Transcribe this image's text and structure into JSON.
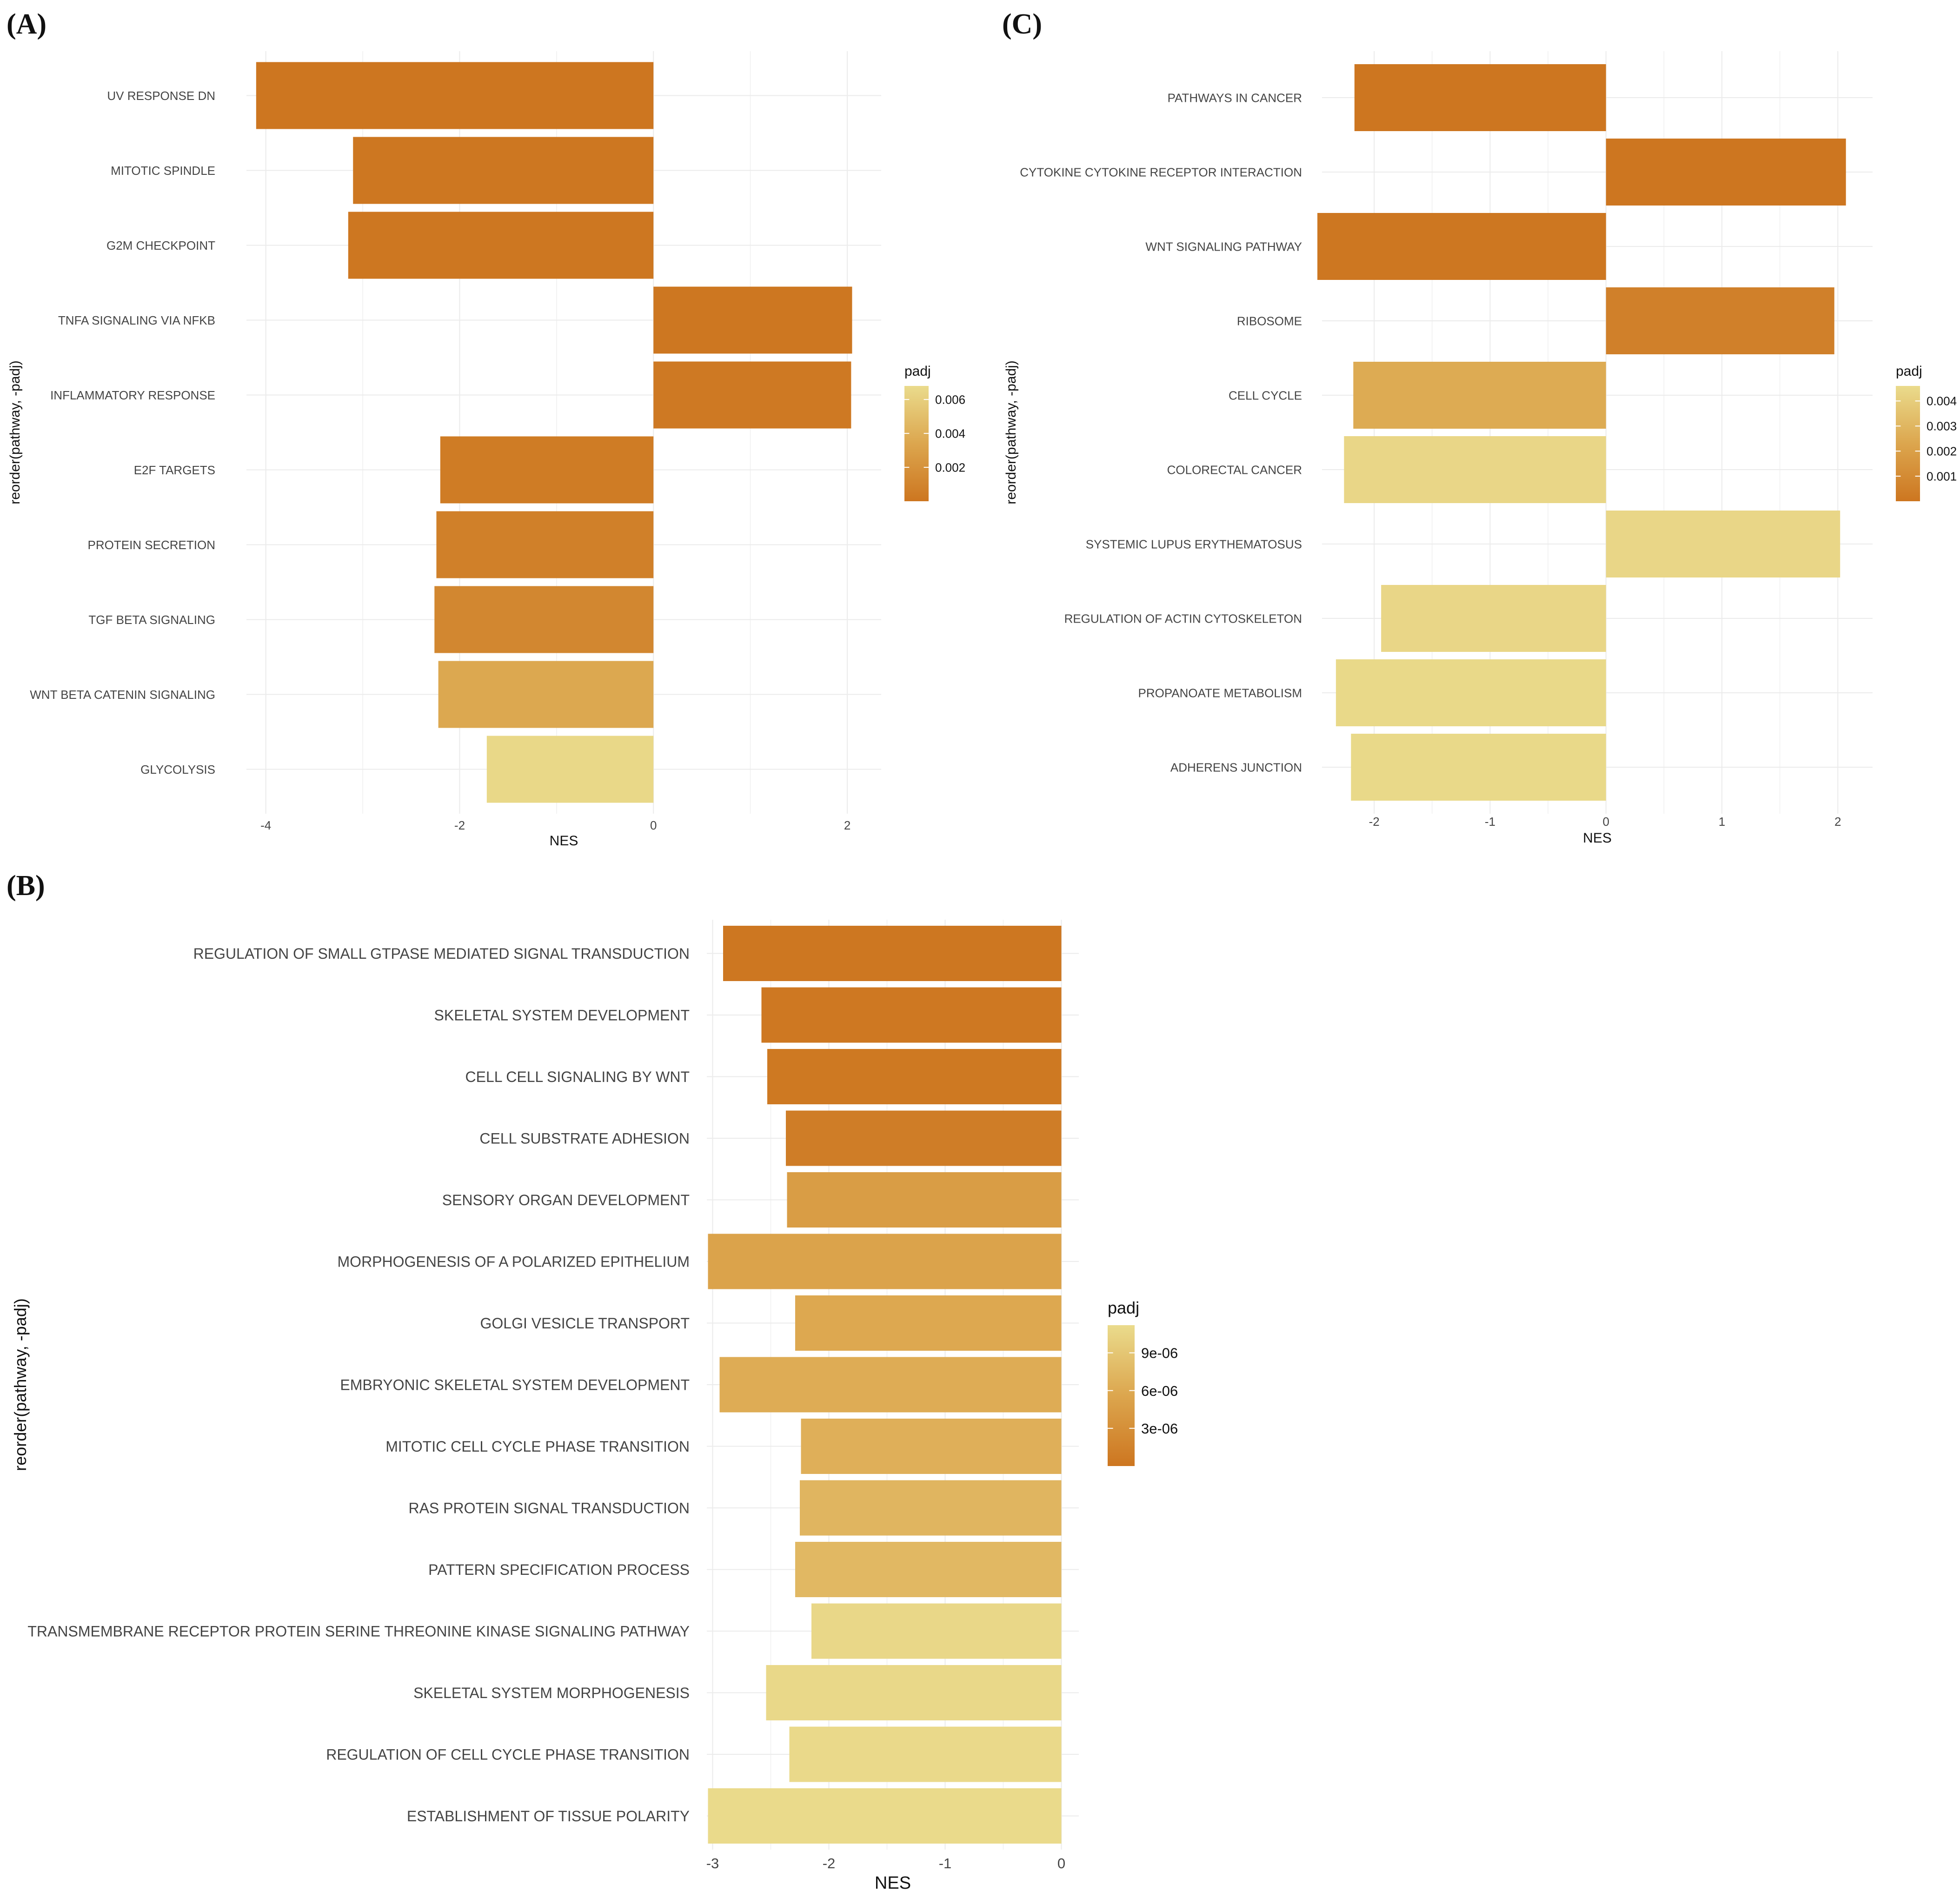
{
  "chart_data": [
    {
      "panel_label": "(A)",
      "type": "bar",
      "orientation": "horizontal",
      "xlabel": "NES",
      "ylabel": "reorder(pathway, -padj)",
      "xlim": [
        -4.2,
        2.35
      ],
      "xticks": [
        -4,
        -2,
        0,
        2
      ],
      "xtick_labels": [
        "-4",
        "-2",
        "0",
        "2"
      ],
      "grid": true,
      "legend_title": "padj",
      "legend_placement": "right",
      "legend_range": [
        0,
        0.0068
      ],
      "legend_ticks": [
        0.002,
        0.004,
        0.006
      ],
      "legend_tick_labels": [
        "0.002",
        "0.004",
        "0.006"
      ],
      "colors": {
        "low": "#cd7620",
        "mid": "#dca64e",
        "high": "#eadb8c"
      },
      "categories": [
        "UV RESPONSE DN",
        "MITOTIC SPINDLE",
        "G2M CHECKPOINT",
        "TNFA SIGNALING VIA NFKB",
        "INFLAMMATORY RESPONSE",
        "E2F TARGETS",
        "PROTEIN SECRETION",
        "TGF BETA SIGNALING",
        "WNT BETA CATENIN SIGNALING",
        "GLYCOLYSIS"
      ],
      "values": [
        -4.1,
        -3.1,
        -3.15,
        2.05,
        2.04,
        -2.2,
        -2.24,
        -2.26,
        -2.22,
        -1.72
      ],
      "padj": [
        1e-05,
        5e-05,
        8e-05,
        0.0001,
        0.0002,
        0.0004,
        0.0007,
        0.0012,
        0.0035,
        0.0066
      ]
    },
    {
      "panel_label": "(C)",
      "type": "bar",
      "orientation": "horizontal",
      "xlabel": "NES",
      "ylabel": "reorder(pathway, -padj)",
      "xlim": [
        -2.45,
        2.3
      ],
      "xticks": [
        -2,
        -1,
        0,
        1,
        2
      ],
      "xtick_labels": [
        "-2",
        "-1",
        "0",
        "1",
        "2"
      ],
      "grid": true,
      "legend_title": "padj",
      "legend_placement": "right",
      "legend_range": [
        0,
        0.0046
      ],
      "legend_ticks": [
        0.001,
        0.002,
        0.003,
        0.004
      ],
      "legend_tick_labels": [
        "0.001",
        "0.002",
        "0.003",
        "0.004"
      ],
      "colors": {
        "low": "#cd7620",
        "mid": "#dca64e",
        "high": "#eadb8c"
      },
      "categories": [
        "PATHWAYS IN CANCER",
        "CYTOKINE CYTOKINE RECEPTOR INTERACTION",
        "WNT SIGNALING PATHWAY",
        "RIBOSOME",
        "CELL CYCLE",
        "COLORECTAL CANCER",
        "SYSTEMIC LUPUS ERYTHEMATOSUS",
        "REGULATION OF ACTIN CYTOSKELETON",
        "PROPANOATE METABOLISM",
        "ADHERENS JUNCTION"
      ],
      "values": [
        -2.17,
        2.07,
        -2.49,
        1.97,
        -2.18,
        -2.26,
        2.02,
        -1.94,
        -2.33,
        -2.2
      ],
      "padj": [
        1e-05,
        2e-05,
        4e-05,
        0.0005,
        0.0025,
        0.0044,
        0.0044,
        0.0044,
        0.0045,
        0.0045
      ]
    },
    {
      "panel_label": "(B)",
      "type": "bar",
      "orientation": "horizontal",
      "xlabel": "NES",
      "ylabel": "reorder(pathway, -padj)",
      "xlim": [
        -3.05,
        0.15
      ],
      "xticks": [
        -3,
        -2,
        -1,
        0
      ],
      "xtick_labels": [
        "-3",
        "-2",
        "-1",
        "0"
      ],
      "grid": true,
      "legend_title": "padj",
      "legend_placement": "right",
      "legend_range": [
        0,
        1.12e-05
      ],
      "legend_ticks": [
        3e-06,
        6e-06,
        9e-06
      ],
      "legend_tick_labels": [
        "3e-06",
        "6e-06",
        "9e-06"
      ],
      "colors": {
        "low": "#cd7620",
        "mid": "#dca64e",
        "high": "#eadb8c"
      },
      "categories": [
        "REGULATION OF SMALL GTPASE MEDIATED SIGNAL TRANSDUCTION",
        "SKELETAL SYSTEM DEVELOPMENT",
        "CELL CELL SIGNALING BY WNT",
        "CELL SUBSTRATE ADHESION",
        "SENSORY ORGAN DEVELOPMENT",
        "MORPHOGENESIS OF A POLARIZED EPITHELIUM",
        "GOLGI VESICLE TRANSPORT",
        "EMBRYONIC SKELETAL SYSTEM DEVELOPMENT",
        "MITOTIC CELL CYCLE PHASE TRANSITION",
        "RAS PROTEIN SIGNAL TRANSDUCTION",
        "PATTERN SPECIFICATION PROCESS",
        "TRANSMEMBRANE RECEPTOR PROTEIN SERINE THREONINE KINASE SIGNALING PATHWAY",
        "SKELETAL SYSTEM MORPHOGENESIS",
        "REGULATION OF CELL CYCLE PHASE TRANSITION",
        "ESTABLISHMENT OF TISSUE POLARITY"
      ],
      "values": [
        -2.91,
        -2.58,
        -2.53,
        -2.37,
        -2.36,
        -3.04,
        -2.29,
        -2.94,
        -2.24,
        -2.25,
        -2.29,
        -2.15,
        -2.54,
        -2.34,
        -3.04
      ],
      "padj": [
        1e-07,
        2e-07,
        3e-07,
        8e-07,
        4.5e-06,
        5.2e-06,
        5.8e-06,
        6.2e-06,
        6.6e-06,
        7.2e-06,
        7.5e-06,
        1.08e-05,
        1.09e-05,
        1.1e-05,
        1.11e-05
      ]
    }
  ]
}
